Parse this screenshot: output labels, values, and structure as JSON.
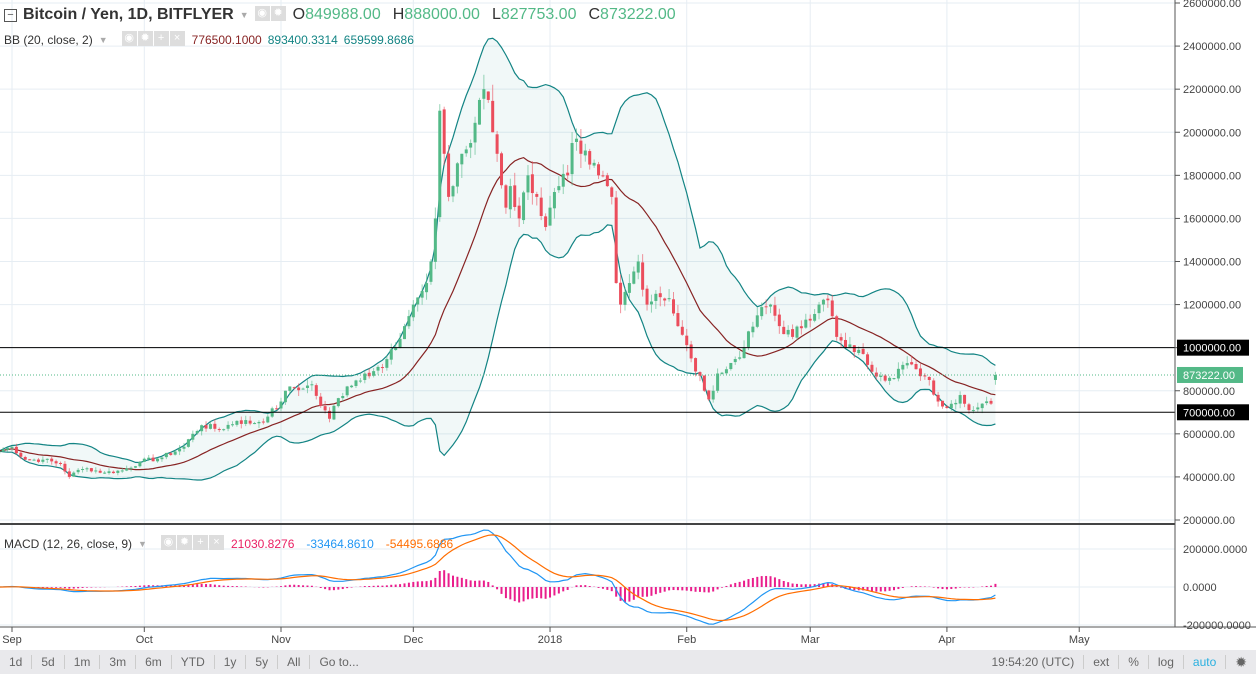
{
  "header": {
    "symbol": "Bitcoin / Yen, 1D, BITFLYER",
    "o_label": "O",
    "o": "849988.00",
    "h_label": "H",
    "h": "888000.00",
    "l_label": "L",
    "l": "827753.00",
    "c_label": "C",
    "c": "873222.00"
  },
  "bb": {
    "label": "BB (20, close, 2)",
    "basis": "776500.1000",
    "upper": "893400.3314",
    "lower": "659599.8686"
  },
  "macd": {
    "label": "MACD (12, 26, close, 9)",
    "hist": "21030.8276",
    "macd": "-33464.8610",
    "signal": "-54495.6886"
  },
  "toolbar": {
    "ranges": [
      "1d",
      "5d",
      "1m",
      "3m",
      "6m",
      "YTD",
      "1y",
      "5y",
      "All",
      "Go to..."
    ],
    "time": "19:54:20 (UTC)",
    "right": [
      "ext",
      "%",
      "log",
      "auto"
    ]
  },
  "colors": {
    "up": "#53b987",
    "down": "#eb4d5c",
    "band": "#138484",
    "basis": "#872323",
    "macd": "#2196f3",
    "signal": "#ff6d00",
    "hist": "#e91e8c",
    "auto": "#2ab0e0"
  },
  "chart_data": {
    "type": "candlestick",
    "last_ohlc": {
      "open": 849988,
      "high": 888000,
      "low": 827753,
      "close": 873222
    },
    "close_keypoints": [
      [
        "2017-08-29",
        520000
      ],
      [
        "2017-09-01",
        540000
      ],
      [
        "2017-09-04",
        480000
      ],
      [
        "2017-09-08",
        480000
      ],
      [
        "2017-09-12",
        460000
      ],
      [
        "2017-09-14",
        400000
      ],
      [
        "2017-09-15",
        420000
      ],
      [
        "2017-09-18",
        440000
      ],
      [
        "2017-09-22",
        420000
      ],
      [
        "2017-09-26",
        430000
      ],
      [
        "2017-09-30",
        470000
      ],
      [
        "2017-10-05",
        490000
      ],
      [
        "2017-10-10",
        540000
      ],
      [
        "2017-10-12",
        600000
      ],
      [
        "2017-10-14",
        640000
      ],
      [
        "2017-10-18",
        620000
      ],
      [
        "2017-10-22",
        660000
      ],
      [
        "2017-10-26",
        650000
      ],
      [
        "2017-10-29",
        680000
      ],
      [
        "2017-11-01",
        750000
      ],
      [
        "2017-11-03",
        820000
      ],
      [
        "2017-11-06",
        810000
      ],
      [
        "2017-11-08",
        830000
      ],
      [
        "2017-11-10",
        730000
      ],
      [
        "2017-11-12",
        670000
      ],
      [
        "2017-11-13",
        730000
      ],
      [
        "2017-11-16",
        820000
      ],
      [
        "2017-11-20",
        880000
      ],
      [
        "2017-11-24",
        910000
      ],
      [
        "2017-11-27",
        1000000
      ],
      [
        "2017-11-29",
        1100000
      ],
      [
        "2017-12-01",
        1200000
      ],
      [
        "2017-12-04",
        1300000
      ],
      [
        "2017-12-05",
        1400000
      ],
      [
        "2017-12-06",
        1600000
      ],
      [
        "2017-12-07",
        2100000
      ],
      [
        "2017-12-08",
        1900000
      ],
      [
        "2017-12-09",
        1700000
      ],
      [
        "2017-12-10",
        1750000
      ],
      [
        "2017-12-12",
        1900000
      ],
      [
        "2017-12-14",
        1950000
      ],
      [
        "2017-12-16",
        2150000
      ],
      [
        "2017-12-17",
        2200000
      ],
      [
        "2017-12-18",
        2150000
      ],
      [
        "2017-12-19",
        2000000
      ],
      [
        "2017-12-20",
        1900000
      ],
      [
        "2017-12-22",
        1650000
      ],
      [
        "2017-12-23",
        1750000
      ],
      [
        "2017-12-25",
        1600000
      ],
      [
        "2017-12-27",
        1800000
      ],
      [
        "2017-12-29",
        1700000
      ],
      [
        "2017-12-31",
        1560000
      ],
      [
        "2018-01-01",
        1650000
      ],
      [
        "2018-01-03",
        1750000
      ],
      [
        "2018-01-05",
        1800000
      ],
      [
        "2018-01-06",
        1950000
      ],
      [
        "2018-01-08",
        1900000
      ],
      [
        "2018-01-10",
        1850000
      ],
      [
        "2018-01-12",
        1800000
      ],
      [
        "2018-01-14",
        1750000
      ],
      [
        "2018-01-15",
        1700000
      ],
      [
        "2018-01-16",
        1300000
      ],
      [
        "2018-01-17",
        1200000
      ],
      [
        "2018-01-19",
        1300000
      ],
      [
        "2018-01-21",
        1400000
      ],
      [
        "2018-01-23",
        1200000
      ],
      [
        "2018-01-25",
        1250000
      ],
      [
        "2018-01-28",
        1230000
      ],
      [
        "2018-01-30",
        1100000
      ],
      [
        "2018-02-02",
        950000
      ],
      [
        "2018-02-05",
        800000
      ],
      [
        "2018-02-06",
        760000
      ],
      [
        "2018-02-08",
        880000
      ],
      [
        "2018-02-10",
        900000
      ],
      [
        "2018-02-14",
        1000000
      ],
      [
        "2018-02-17",
        1150000
      ],
      [
        "2018-02-20",
        1200000
      ],
      [
        "2018-02-22",
        1100000
      ],
      [
        "2018-02-25",
        1050000
      ],
      [
        "2018-02-28",
        1130000
      ],
      [
        "2018-03-03",
        1200000
      ],
      [
        "2018-03-05",
        1220000
      ],
      [
        "2018-03-07",
        1050000
      ],
      [
        "2018-03-09",
        1000000
      ],
      [
        "2018-03-12",
        990000
      ],
      [
        "2018-03-14",
        920000
      ],
      [
        "2018-03-17",
        870000
      ],
      [
        "2018-03-19",
        860000
      ],
      [
        "2018-03-22",
        920000
      ],
      [
        "2018-03-25",
        900000
      ],
      [
        "2018-03-28",
        850000
      ],
      [
        "2018-03-30",
        750000
      ],
      [
        "2018-04-01",
        720000
      ],
      [
        "2018-04-04",
        780000
      ],
      [
        "2018-04-06",
        710000
      ],
      [
        "2018-04-09",
        740000
      ],
      [
        "2018-04-11",
        740000
      ],
      [
        "2018-04-12",
        873222
      ]
    ],
    "price_axis": {
      "min": 200000,
      "max": 2600000,
      "ticks": [
        "2600000.00",
        "2400000.00",
        "2200000.00",
        "2000000.00",
        "1800000.00",
        "1600000.00",
        "1400000.00",
        "1200000.00",
        "1000000.00",
        "800000.00",
        "600000.00",
        "400000.00",
        "200000.00"
      ]
    },
    "horizontal_lines": [
      {
        "value": 1000000,
        "label": "1000000.00"
      },
      {
        "value": 700000,
        "label": "700000.00"
      }
    ],
    "last_price": {
      "value": 873222,
      "label": "873222.00"
    },
    "macd_axis": {
      "ticks": [
        {
          "v": 200000,
          "label": "200000.0000"
        },
        {
          "v": 0,
          "label": "0.0000"
        },
        {
          "v": -200000,
          "label": "-200000.0000"
        }
      ]
    },
    "time_axis": [
      [
        "2017-09-01",
        "Sep"
      ],
      [
        "2017-10-01",
        "Oct"
      ],
      [
        "2017-11-01",
        "Nov"
      ],
      [
        "2017-12-01",
        "Dec"
      ],
      [
        "2018-01-01",
        "2018"
      ],
      [
        "2018-02-01",
        "Feb"
      ],
      [
        "2018-03-01",
        "Mar"
      ],
      [
        "2018-04-01",
        "Apr"
      ],
      [
        "2018-05-01",
        "May"
      ]
    ],
    "indicators": [
      "BB (20, close, 2)",
      "MACD (12, 26, close, 9)"
    ],
    "grid": true
  }
}
